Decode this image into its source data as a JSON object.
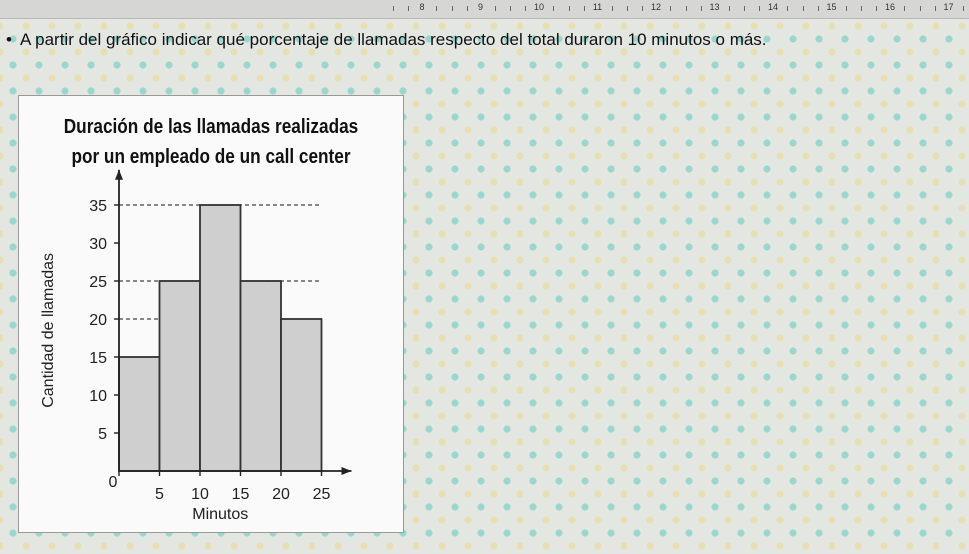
{
  "ruler": {
    "numbers": [
      "8",
      "9",
      "10",
      "11",
      "12",
      "13",
      "14",
      "15",
      "16",
      "17"
    ]
  },
  "question": "A partir del gráfico indicar qué porcentaje de llamadas respecto del total duraron 10 minutos o más.",
  "chart_data": {
    "type": "bar",
    "title": "Duración de las llamadas realizadas",
    "subtitle": "por un empleado de un call center",
    "xlabel": "Minutos",
    "ylabel": "Cantidad de llamadas",
    "bin_edges": [
      0,
      5,
      10,
      15,
      20,
      25
    ],
    "values": [
      15,
      25,
      35,
      25,
      20
    ],
    "xticks": [
      "0",
      "5",
      "10",
      "15",
      "20",
      "25"
    ],
    "yticks": [
      "5",
      "10",
      "15",
      "20",
      "25",
      "30",
      "35"
    ],
    "ylim": [
      0,
      37
    ],
    "reference_lines": [
      35,
      25,
      20
    ],
    "bar_color": "#cfcfcf",
    "grid": false
  }
}
